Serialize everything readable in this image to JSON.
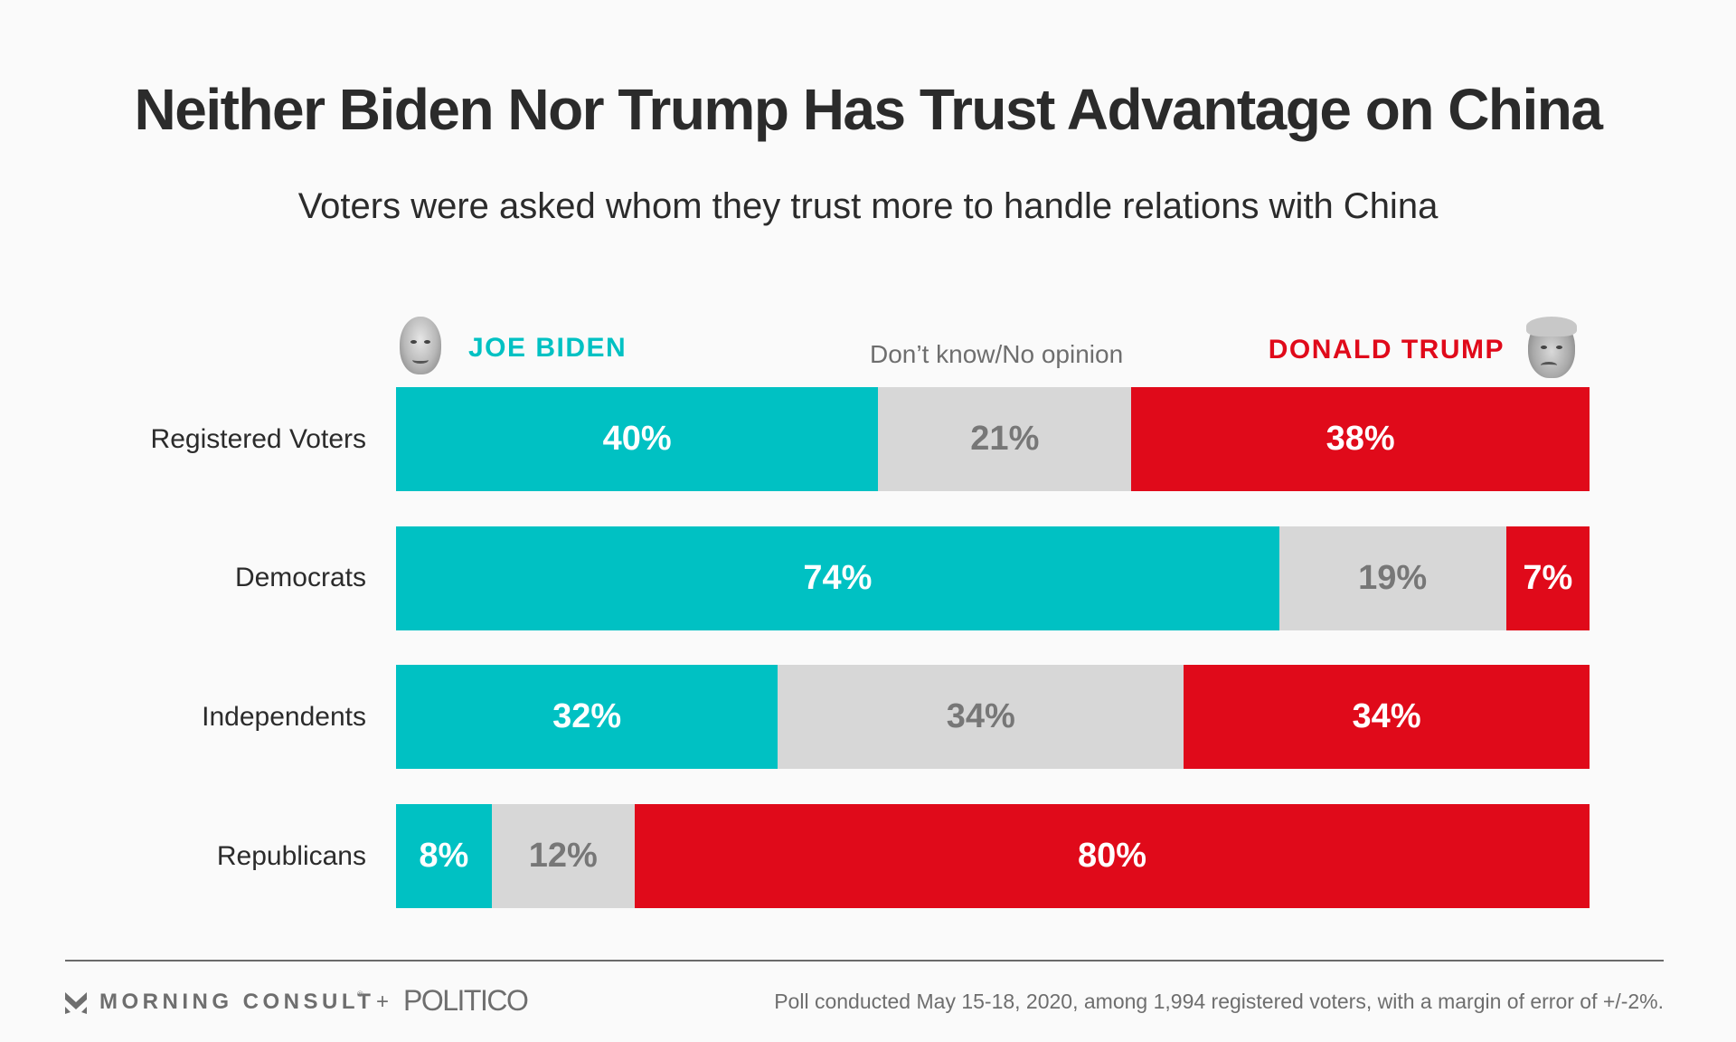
{
  "header": {
    "title": "Neither Biden Nor Trump Has Trust Advantage on China",
    "subtitle": "Voters were asked whom they trust more to handle relations with China"
  },
  "legend": {
    "biden": "JOE BIDEN",
    "dont_know": "Don’t know/No opinion",
    "trump": "DONALD TRUMP",
    "biden_icon": "biden-portrait-icon",
    "trump_icon": "trump-portrait-icon"
  },
  "colors": {
    "biden": "#00c1c3",
    "dont_know": "#d7d7d7",
    "trump": "#e00a1a",
    "dont_know_text": "#777777"
  },
  "chart_data": {
    "type": "bar",
    "orientation": "horizontal",
    "stacked": true,
    "normalized": true,
    "title": "Neither Biden Nor Trump Has Trust Advantage on China",
    "subtitle": "Voters were asked whom they trust more to handle relations with China",
    "categories": [
      "Registered Voters",
      "Democrats",
      "Independents",
      "Republicans"
    ],
    "series": [
      {
        "name": "JOE BIDEN",
        "key": "biden",
        "values": [
          40,
          74,
          32,
          8
        ]
      },
      {
        "name": "Don’t know/No opinion",
        "key": "dk",
        "values": [
          21,
          19,
          34,
          12
        ]
      },
      {
        "name": "DONALD TRUMP",
        "key": "trump",
        "values": [
          38,
          7,
          34,
          80
        ]
      }
    ],
    "value_suffix": "%",
    "legend_position": "top",
    "grid": false,
    "xlabel": "",
    "ylabel": ""
  },
  "footer": {
    "brand_1": "MORNING CONSULT",
    "brand_1_mark": "®",
    "plus": "+",
    "brand_2": "POLITICO",
    "note": "Poll conducted May 15-18, 2020, among 1,994 registered voters, with a margin of error of +/-2%."
  }
}
